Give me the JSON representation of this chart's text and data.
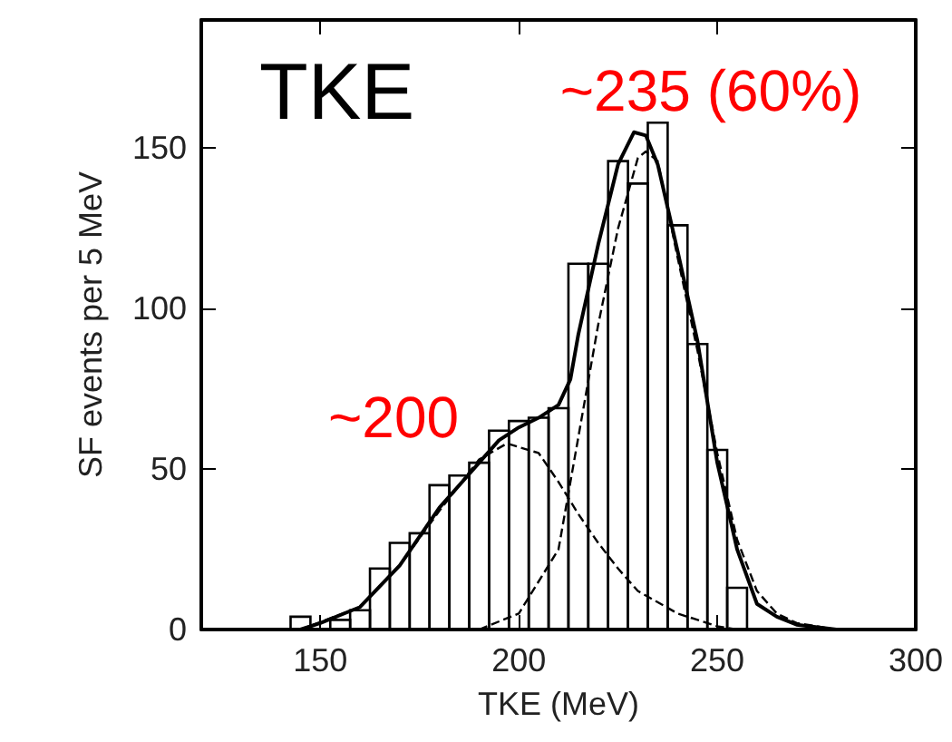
{
  "chart_data": {
    "type": "histogram",
    "title": "TKE",
    "xlabel": "TKE (MeV)",
    "ylabel": "SF events per 5 MeV",
    "color": "#000000",
    "bins": [
      142.5,
      147.5,
      152.5,
      157.5,
      162.5,
      167.5,
      172.5,
      177.5,
      182.5,
      187.5,
      192.5,
      197.5,
      202.5,
      207.5,
      212.5,
      217.5,
      222.5,
      227.5,
      232.5,
      237.5,
      242.5,
      247.5,
      252.5,
      257.5
    ],
    "values": [
      4,
      0,
      3,
      6,
      19,
      27,
      30,
      45,
      48,
      52,
      62,
      65,
      66,
      69,
      114,
      114,
      146,
      139,
      158,
      126,
      89,
      56,
      13
    ],
    "series": [
      {
        "type": "line",
        "color": "#000000",
        "line_style": "solid",
        "x": [
          145,
          150,
          160,
          170,
          180,
          190,
          195,
          200,
          205,
          210,
          213,
          215,
          220,
          225,
          229,
          232,
          235,
          240,
          245,
          250,
          255,
          260,
          265,
          270,
          280
        ],
        "values": [
          0,
          2,
          7,
          20,
          38,
          52,
          59,
          63,
          66,
          70,
          78,
          92,
          120,
          145,
          155,
          154,
          145,
          118,
          90,
          52,
          25,
          8,
          4,
          1.5,
          0
        ]
      },
      {
        "type": "line",
        "color": "#000000",
        "line_style": "dashed",
        "x": [
          145,
          160,
          170,
          180,
          190,
          197,
          205,
          210,
          215,
          220,
          225,
          230,
          240,
          250,
          255
        ],
        "values": [
          0,
          7,
          20,
          37,
          53,
          58,
          55,
          46,
          36,
          27,
          19,
          12,
          5,
          1,
          0
        ]
      },
      {
        "type": "line",
        "color": "#000000",
        "line_style": "dashed",
        "x": [
          190,
          200,
          210,
          215,
          220,
          225,
          230,
          232,
          235,
          240,
          245,
          250,
          255,
          260,
          265,
          270,
          280
        ],
        "values": [
          0,
          5,
          25,
          60,
          95,
          125,
          147,
          149,
          146,
          116,
          87,
          55,
          28,
          12,
          5,
          2,
          0
        ]
      }
    ],
    "xlim": [
      120,
      300
    ],
    "ylim": [
      0,
      190
    ],
    "xticks": [
      150,
      200,
      250,
      300
    ],
    "yticks": [
      0,
      50,
      100,
      150
    ],
    "annotations": [
      "~235 (60%)",
      "~200"
    ]
  }
}
